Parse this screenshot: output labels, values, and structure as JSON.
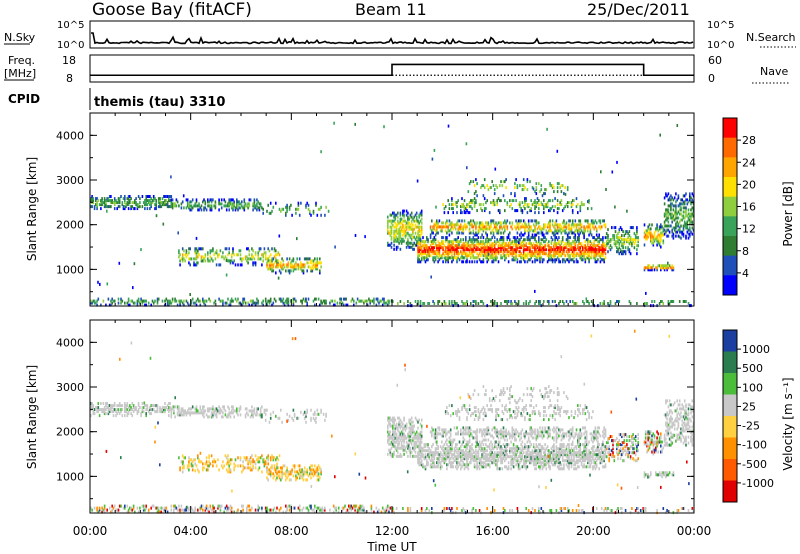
{
  "header": {
    "station": "Goose Bay (fitACF)",
    "beam": "Beam 11",
    "date": "25/Dec/2011"
  },
  "panels": {
    "nsky_label": "N.Sky",
    "nsky_tick_hi": "10^5",
    "nsky_tick_lo": "10^0",
    "nsearch_label": "N.Search",
    "nsearch_tick_hi": "10^5",
    "nsearch_tick_lo": "10^0",
    "freq_label": "Freq.",
    "freq_unit": "[MHz]",
    "freq_tick_hi": "18",
    "freq_tick_lo": "8",
    "nave_label": "Nave",
    "nave_tick_hi": "60",
    "nave_tick_lo": "0",
    "cpid_label": "CPID",
    "cpid_value": "themis (tau) 3310"
  },
  "colors": {
    "power": [
      "#0000ff",
      "#1f4fb8",
      "#2e7d32",
      "#3aa35a",
      "#8fcf3f",
      "#ffe000",
      "#ffa500",
      "#ff6a00",
      "#ff0000"
    ],
    "velocity": [
      "#1a3fa0",
      "#2a7d4f",
      "#4bbd3a",
      "#c8c8c8",
      "#ffd040",
      "#ff9000",
      "#ff5a00",
      "#e00000"
    ]
  },
  "chart_data": [
    {
      "type": "heatmap",
      "title": "",
      "ylabel": "Slant Range [km]",
      "xlabel": "",
      "x_ticks": [
        "00:00",
        "04:00",
        "08:00",
        "12:00",
        "16:00",
        "20:00",
        "00:00"
      ],
      "xlim_hours": [
        0,
        24
      ],
      "y_ticks": [
        "1000",
        "2000",
        "3000",
        "4000"
      ],
      "ylim": [
        180,
        4500
      ],
      "colorbar": {
        "label": "Power [dB]",
        "ticks": [
          "4",
          "8",
          "12",
          "16",
          "20",
          "24",
          "28"
        ],
        "range": [
          0,
          30
        ]
      }
    },
    {
      "type": "heatmap",
      "title": "",
      "ylabel": "Slant Range [km]",
      "xlabel": "Time UT",
      "x_ticks": [
        "00:00",
        "04:00",
        "08:00",
        "12:00",
        "16:00",
        "20:00",
        "00:00"
      ],
      "xlim_hours": [
        0,
        24
      ],
      "y_ticks": [
        "1000",
        "2000",
        "3000",
        "4000"
      ],
      "ylim": [
        180,
        4500
      ],
      "colorbar": {
        "label": "Velocity [m s⁻¹]",
        "ticks": [
          "1000",
          "500",
          "100",
          "25",
          "-25",
          "-100",
          "-500",
          "-1000"
        ]
      }
    }
  ],
  "time_series": {
    "freq_mhz": [
      {
        "from_hour": 0,
        "to_hour": 12,
        "value": 10.5
      },
      {
        "from_hour": 12,
        "to_hour": 22,
        "value": 14.5
      },
      {
        "from_hour": 22,
        "to_hour": 24,
        "value": 10.5
      }
    ],
    "nave": 15
  }
}
